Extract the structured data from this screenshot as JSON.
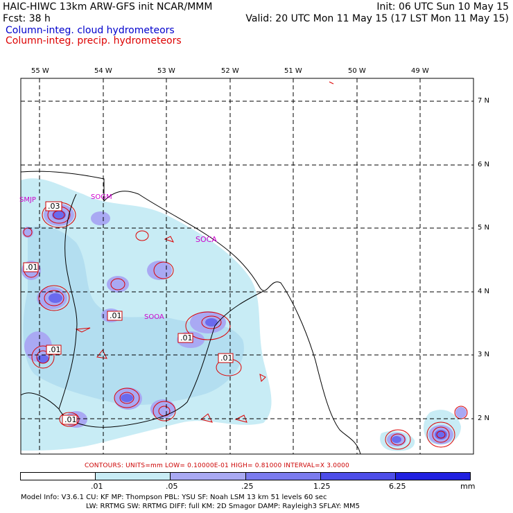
{
  "header": {
    "line1_left": "HAIC-HIWC 13km ARW-GFS init   NCAR/MMM",
    "line1_right": "Init: 06 UTC Sun 10 May 15",
    "line2_left": "Fcst:   38 h",
    "line2_right": "Valid: 20 UTC Mon 11 May 15 (17 LST Mon 11 May 15)",
    "field_cloud": "Column-integ. cloud hydrometeors",
    "field_precip": "Column-integ. precip. hydrometeors"
  },
  "axes": {
    "lon_labels": [
      "55 W",
      "54 W",
      "53 W",
      "52 W",
      "51 W",
      "50 W",
      "49 W"
    ],
    "lat_labels": [
      "7 N",
      "6 N",
      "5 N",
      "4 N",
      "3 N",
      "2 N"
    ]
  },
  "stations": [
    "SMJP",
    "SOGM",
    "SOCA",
    "SOOA"
  ],
  "contour_labels": [
    ".03",
    ".01",
    ".01",
    ".01",
    ".01",
    ".01",
    ".01"
  ],
  "contour_info": "CONTOURS:  UNITS=mm  LOW= 0.10000E-01  HIGH= 0.81000     INTERVAL=X  3.0000",
  "colorbar": {
    "ticks": [
      ".01",
      ".05",
      ".25",
      "1.25",
      "6.25"
    ],
    "units": "mm",
    "colors": [
      "#ffffff",
      "#c8ecf5",
      "#a9a9f3",
      "#7b7bee",
      "#4d4de8",
      "#2020e0"
    ]
  },
  "model_info": {
    "line1": "Model Info: V3.6.1    CU: KF       MP: Thompson     PBL: YSU        SF: Noah LSM      13 km    51 levels   60 sec",
    "line2": "LW: RRTMG     SW: RRTMG   DIFF: full     KM: 2D Smagor DAMP: Rayleigh3   SFLAY: MM5"
  },
  "colors": {
    "cloud_header": "#0000cc",
    "precip_contour": "#dd0000",
    "station_label": "#cc00cc"
  }
}
